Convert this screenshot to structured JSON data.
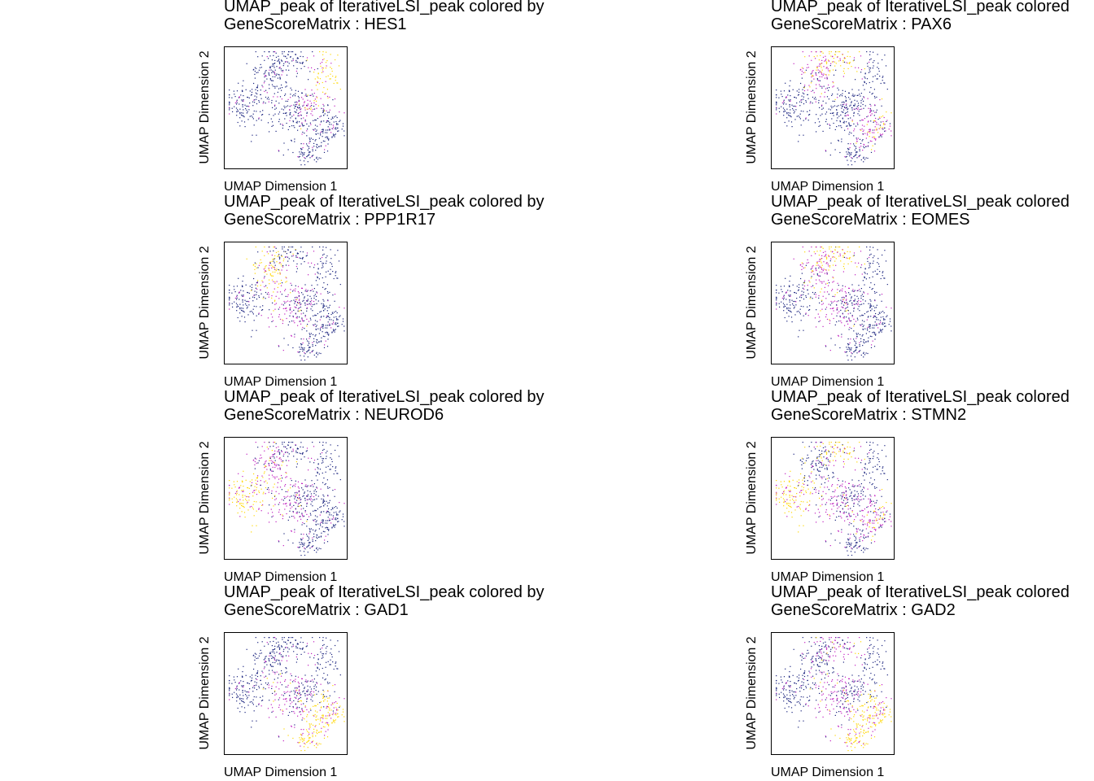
{
  "chart_data": [
    {
      "type": "scatter",
      "title_line1": "UMAP_peak of IterativeLSI_peak colored by",
      "title_line2": "GeneScoreMatrix : HES1",
      "gene": "HES1",
      "xlabel": "UMAP Dimension 1",
      "ylabel": "UMAP Dimension 2",
      "high_clusters": [
        "top-right"
      ],
      "mid_clusters": [
        "center-right"
      ],
      "colors": {
        "low": "#1a237e",
        "mid": "#c020c0",
        "high": "#ffd700"
      }
    },
    {
      "type": "scatter",
      "title_line1": "UMAP_peak of IterativeLSI_peak colored",
      "title_line2": "GeneScoreMatrix : PAX6",
      "gene": "PAX6",
      "xlabel": "UMAP Dimension 1",
      "ylabel": "UMAP Dimension 2",
      "high_clusters": [
        "top-center"
      ],
      "mid_clusters": [
        "top-left",
        "bottom-right"
      ],
      "colors": {
        "low": "#1a237e",
        "mid": "#c020c0",
        "high": "#ffd700"
      }
    },
    {
      "type": "scatter",
      "title_line1": "UMAP_peak of IterativeLSI_peak colored by",
      "title_line2": "GeneScoreMatrix : PPP1R17",
      "gene": "PPP1R17",
      "xlabel": "UMAP Dimension 1",
      "ylabel": "UMAP Dimension 2",
      "high_clusters": [
        "top-left"
      ],
      "mid_clusters": [
        "center"
      ],
      "colors": {
        "low": "#1a237e",
        "mid": "#c020c0",
        "high": "#ffd700"
      }
    },
    {
      "type": "scatter",
      "title_line1": "UMAP_peak of IterativeLSI_peak colored",
      "title_line2": "GeneScoreMatrix : EOMES",
      "gene": "EOMES",
      "xlabel": "UMAP Dimension 1",
      "ylabel": "UMAP Dimension 2",
      "high_clusters": [
        "top-center"
      ],
      "mid_clusters": [
        "center",
        "top-left"
      ],
      "colors": {
        "low": "#1a237e",
        "mid": "#c020c0",
        "high": "#ffd700"
      }
    },
    {
      "type": "scatter",
      "title_line1": "UMAP_peak of IterativeLSI_peak colored by",
      "title_line2": "GeneScoreMatrix : NEUROD6",
      "gene": "NEUROD6",
      "xlabel": "UMAP Dimension 1",
      "ylabel": "UMAP Dimension 2",
      "high_clusters": [
        "left"
      ],
      "mid_clusters": [
        "top-left",
        "center"
      ],
      "colors": {
        "low": "#1a237e",
        "mid": "#c020c0",
        "high": "#ffd700"
      }
    },
    {
      "type": "scatter",
      "title_line1": "UMAP_peak of IterativeLSI_peak colored",
      "title_line2": "GeneScoreMatrix : STMN2",
      "gene": "STMN2",
      "xlabel": "UMAP Dimension 1",
      "ylabel": "UMAP Dimension 2",
      "high_clusters": [
        "left",
        "top-center"
      ],
      "mid_clusters": [
        "center",
        "bottom-right"
      ],
      "colors": {
        "low": "#1a237e",
        "mid": "#c020c0",
        "high": "#ffd700"
      }
    },
    {
      "type": "scatter",
      "title_line1": "UMAP_peak of IterativeLSI_peak colored by",
      "title_line2": "GeneScoreMatrix : GAD1",
      "gene": "GAD1",
      "xlabel": "UMAP Dimension 1",
      "ylabel": "UMAP Dimension 2",
      "high_clusters": [
        "bottom-right",
        "bottom"
      ],
      "mid_clusters": [
        "center"
      ],
      "colors": {
        "low": "#1a237e",
        "mid": "#c020c0",
        "high": "#ffd700"
      }
    },
    {
      "type": "scatter",
      "title_line1": "UMAP_peak of IterativeLSI_peak colored",
      "title_line2": "GeneScoreMatrix : GAD2",
      "gene": "GAD2",
      "xlabel": "UMAP Dimension 1",
      "ylabel": "UMAP Dimension 2",
      "high_clusters": [
        "bottom",
        "bottom-right"
      ],
      "mid_clusters": [
        "center",
        "top-center"
      ],
      "colors": {
        "low": "#1a237e",
        "mid": "#c020c0",
        "high": "#ffd700"
      }
    }
  ]
}
